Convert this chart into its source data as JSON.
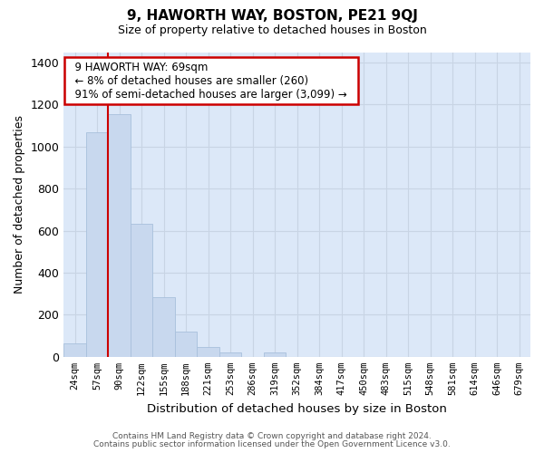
{
  "title": "9, HAWORTH WAY, BOSTON, PE21 9QJ",
  "subtitle": "Size of property relative to detached houses in Boston",
  "xlabel": "Distribution of detached houses by size in Boston",
  "ylabel": "Number of detached properties",
  "footer_line1": "Contains HM Land Registry data © Crown copyright and database right 2024.",
  "footer_line2": "Contains public sector information licensed under the Open Government Licence v3.0.",
  "categories": [
    "24sqm",
    "57sqm",
    "90sqm",
    "122sqm",
    "155sqm",
    "188sqm",
    "221sqm",
    "253sqm",
    "286sqm",
    "319sqm",
    "352sqm",
    "384sqm",
    "417sqm",
    "450sqm",
    "483sqm",
    "515sqm",
    "548sqm",
    "581sqm",
    "614sqm",
    "646sqm",
    "679sqm"
  ],
  "values": [
    65,
    1070,
    1155,
    635,
    285,
    120,
    48,
    22,
    0,
    22,
    0,
    0,
    0,
    0,
    0,
    0,
    0,
    0,
    0,
    0,
    0
  ],
  "bar_color": "#c8d8ee",
  "bar_edge_color": "#a8c0dc",
  "vline_x": 1.5,
  "vline_color": "#cc0000",
  "annotation_title": "9 HAWORTH WAY: 69sqm",
  "annotation_line1": "← 8% of detached houses are smaller (260)",
  "annotation_line2": "91% of semi-detached houses are larger (3,099) →",
  "annotation_box_color": "#ffffff",
  "annotation_box_edge": "#cc0000",
  "ylim": [
    0,
    1450
  ],
  "yticks": [
    0,
    200,
    400,
    600,
    800,
    1000,
    1200,
    1400
  ],
  "grid_color": "#c8d4e4",
  "background_color": "#ffffff",
  "plot_bg_color": "#dce8f8"
}
